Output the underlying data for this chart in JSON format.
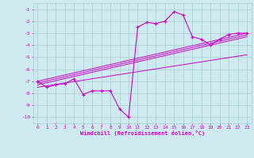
{
  "xlabel": "Windchill (Refroidissement éolien,°C)",
  "background_color": "#cceaf0",
  "grid_color": "#aacccc",
  "line_color": "#cc00cc",
  "xlim": [
    -0.5,
    23.5
  ],
  "ylim": [
    -10.5,
    -0.5
  ],
  "yticks": [
    -10,
    -9,
    -8,
    -7,
    -6,
    -5,
    -4,
    -3,
    -2,
    -1
  ],
  "xticks": [
    0,
    1,
    2,
    3,
    4,
    5,
    6,
    7,
    8,
    9,
    10,
    11,
    12,
    13,
    14,
    15,
    16,
    17,
    18,
    19,
    20,
    21,
    22,
    23
  ],
  "series1_x": [
    0,
    1,
    2,
    3,
    4,
    5,
    6,
    7,
    8,
    9,
    10,
    11,
    12,
    13,
    14,
    15,
    16,
    17,
    18,
    19,
    20,
    21,
    22,
    23
  ],
  "series1_y": [
    -7.0,
    -7.5,
    -7.3,
    -7.2,
    -6.8,
    -8.1,
    -7.8,
    -7.8,
    -7.8,
    -9.3,
    -10.0,
    -2.5,
    -2.1,
    -2.2,
    -2.0,
    -1.2,
    -1.5,
    -3.3,
    -3.5,
    -4.0,
    -3.5,
    -3.1,
    -3.0,
    -3.0
  ],
  "diag_lines": [
    {
      "x": [
        0,
        23
      ],
      "y": [
        -7.0,
        -3.0
      ]
    },
    {
      "x": [
        0,
        23
      ],
      "y": [
        -7.15,
        -3.15
      ]
    },
    {
      "x": [
        0,
        23
      ],
      "y": [
        -7.3,
        -3.3
      ]
    },
    {
      "x": [
        0,
        23
      ],
      "y": [
        -7.5,
        -4.8
      ]
    }
  ]
}
